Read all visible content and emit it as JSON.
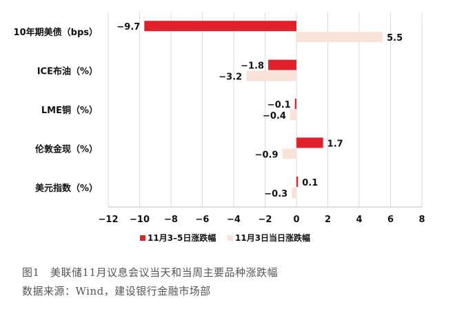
{
  "chart_data": {
    "type": "bar",
    "orientation": "horizontal",
    "categories": [
      "10年期美债（bps）",
      "ICE布油（%）",
      "LME铜（%）",
      "伦敦金现（%）",
      "美元指数（%）"
    ],
    "series": [
      {
        "name": "11月3–5日涨跌幅",
        "color": "#e0202a",
        "values": [
          -9.7,
          -1.8,
          -0.1,
          1.7,
          0.1
        ],
        "labels": [
          "−9.7",
          "−1.8",
          "−0.1",
          "1.7",
          "0.1"
        ]
      },
      {
        "name": "11月3日当日涨跌幅",
        "color": "#f9e3d8",
        "values": [
          5.5,
          -3.2,
          -0.4,
          -0.9,
          -0.3
        ],
        "labels": [
          "5.5",
          "−3.2",
          "−0.4",
          "−0.9",
          "−0.3"
        ]
      }
    ],
    "xlim": [
      -12,
      8
    ],
    "xticks": [
      -12,
      -10,
      -8,
      -6,
      -4,
      -2,
      0,
      2,
      4,
      6,
      8
    ],
    "xtick_labels": [
      "−12",
      "−10",
      "−8",
      "−6",
      "−4",
      "−2",
      "0",
      "2",
      "4",
      "6",
      "8"
    ],
    "grid": true,
    "legend_position": "bottom"
  },
  "caption": {
    "line1": "图1　美联储11月议息会议当天和当周主要品种涨跌幅",
    "line2": "数据来源：Wind，建设银行金融市场部"
  }
}
